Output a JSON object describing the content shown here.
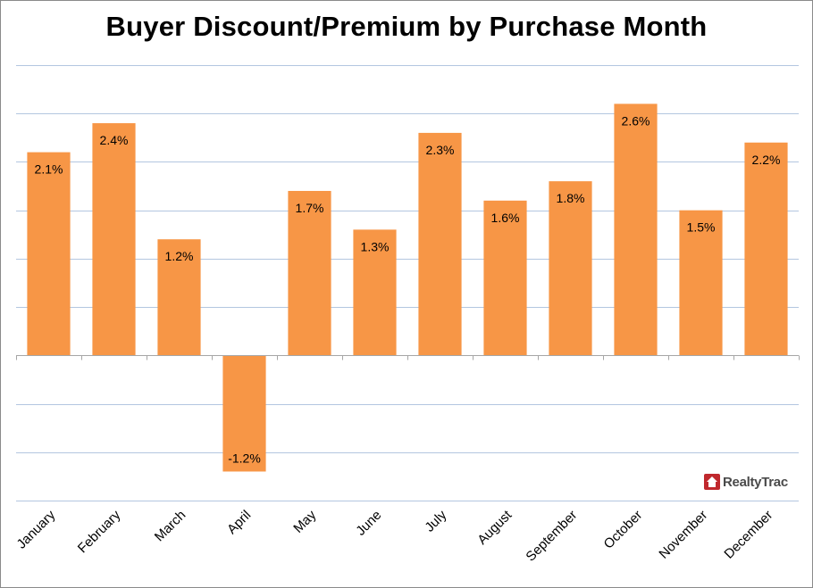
{
  "chart_data": {
    "type": "bar",
    "title": "Buyer Discount/Premium by Purchase Month",
    "categories": [
      "January",
      "February",
      "March",
      "April",
      "May",
      "June",
      "July",
      "August",
      "September",
      "October",
      "November",
      "December"
    ],
    "values": [
      2.1,
      2.4,
      1.2,
      -1.2,
      1.7,
      1.3,
      2.3,
      1.6,
      1.8,
      2.6,
      1.5,
      2.2
    ],
    "value_labels": [
      "2.1%",
      "2.4%",
      "1.2%",
      "-1.2%",
      "1.7%",
      "1.3%",
      "2.3%",
      "1.6%",
      "1.8%",
      "2.6%",
      "1.5%",
      "2.2%"
    ],
    "ylim": [
      -1.5,
      3.0
    ],
    "xlabel": "",
    "ylabel": "",
    "grid": true,
    "bar_color": "#f79646",
    "grid_color": "#b3c6e0",
    "axis_color": "#a6a6a6"
  },
  "logo": {
    "text": "RealtyTrac"
  }
}
